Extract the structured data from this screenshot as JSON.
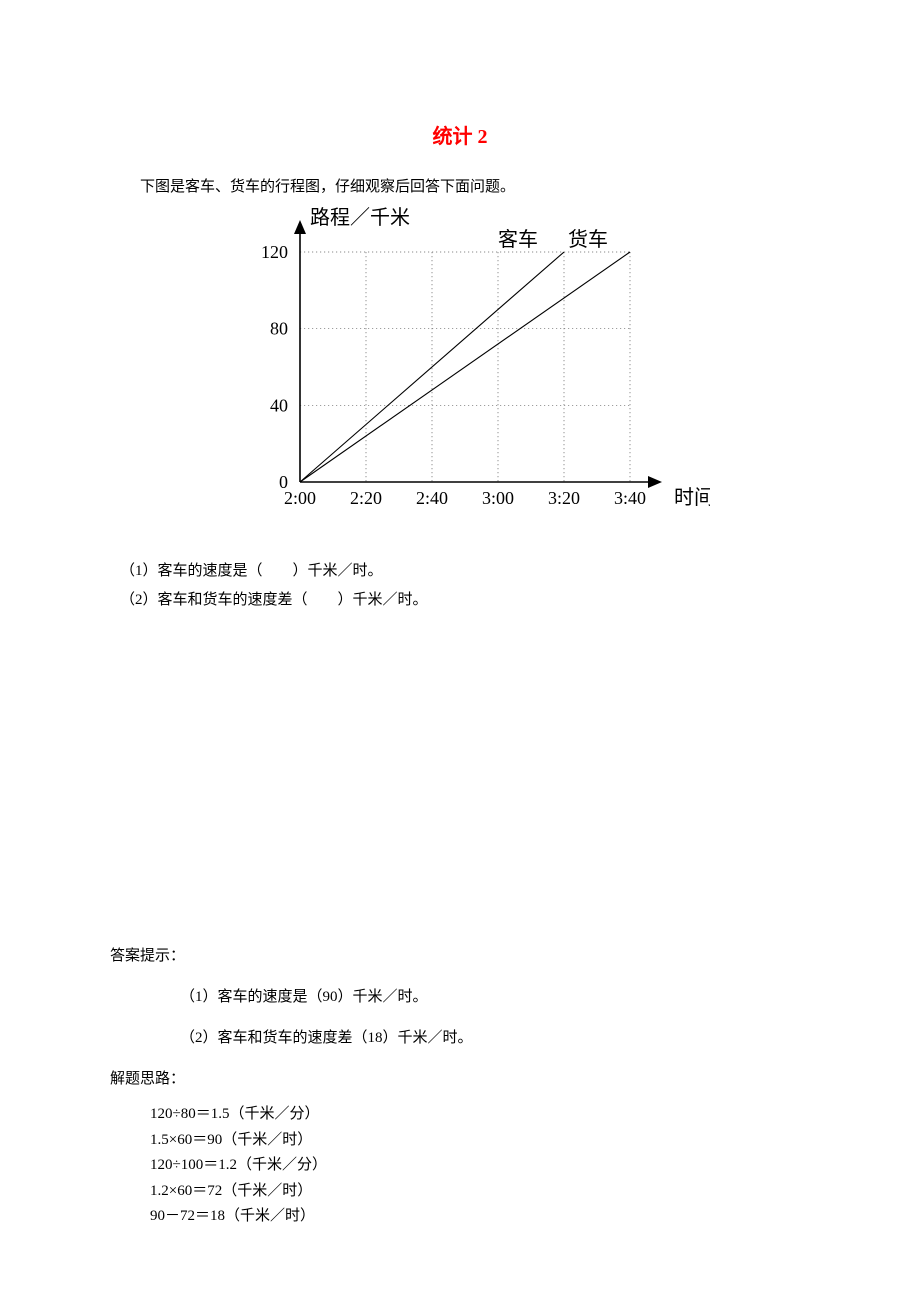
{
  "title": "统计 2",
  "intro": "下图是客车、货车的行程图，仔细观察后回答下面问题。",
  "chart": {
    "type": "line",
    "y_axis_label": "路程／千米",
    "x_axis_label": "时间",
    "series_labels": {
      "bus": "客车",
      "truck": "货车"
    },
    "y_ticks": [
      0,
      40,
      80,
      120
    ],
    "x_ticks": [
      "2:00",
      "2:20",
      "2:40",
      "3:00",
      "3:20",
      "3:40"
    ],
    "ylim": [
      0,
      120
    ],
    "x_count": 6,
    "bus": {
      "x_indices": [
        0,
        4
      ],
      "y": [
        0,
        120
      ]
    },
    "truck": {
      "x_indices": [
        0,
        5
      ],
      "y": [
        0,
        120
      ]
    },
    "colors": {
      "axis": "#000000",
      "grid": "#646464",
      "line": "#000000",
      "text": "#000000",
      "background": "#ffffff"
    },
    "stroke": {
      "axis": 1.6,
      "grid": 0.7,
      "line": 1.1
    },
    "grid_dash": "1.2,2.8",
    "fontsize": {
      "axis_label": 20,
      "tick": 18,
      "series_label": 20
    }
  },
  "questions": {
    "q1": "（1）客车的速度是（　　）千米／时。",
    "q2": "（2）客车和货车的速度差（　　）千米／时。"
  },
  "answer_header": "答案提示：",
  "answers": {
    "a1": "（1）客车的速度是（90）千米／时。",
    "a2": "（2）客车和货车的速度差（18）千米／时。"
  },
  "solution_header": "解题思路：",
  "solution_steps": [
    "120÷80＝1.5（千米／分）",
    "1.5×60＝90（千米／时）",
    "120÷100＝1.2（千米／分）",
    "1.2×60＝72（千米／时）",
    "90－72＝18（千米／时）"
  ]
}
